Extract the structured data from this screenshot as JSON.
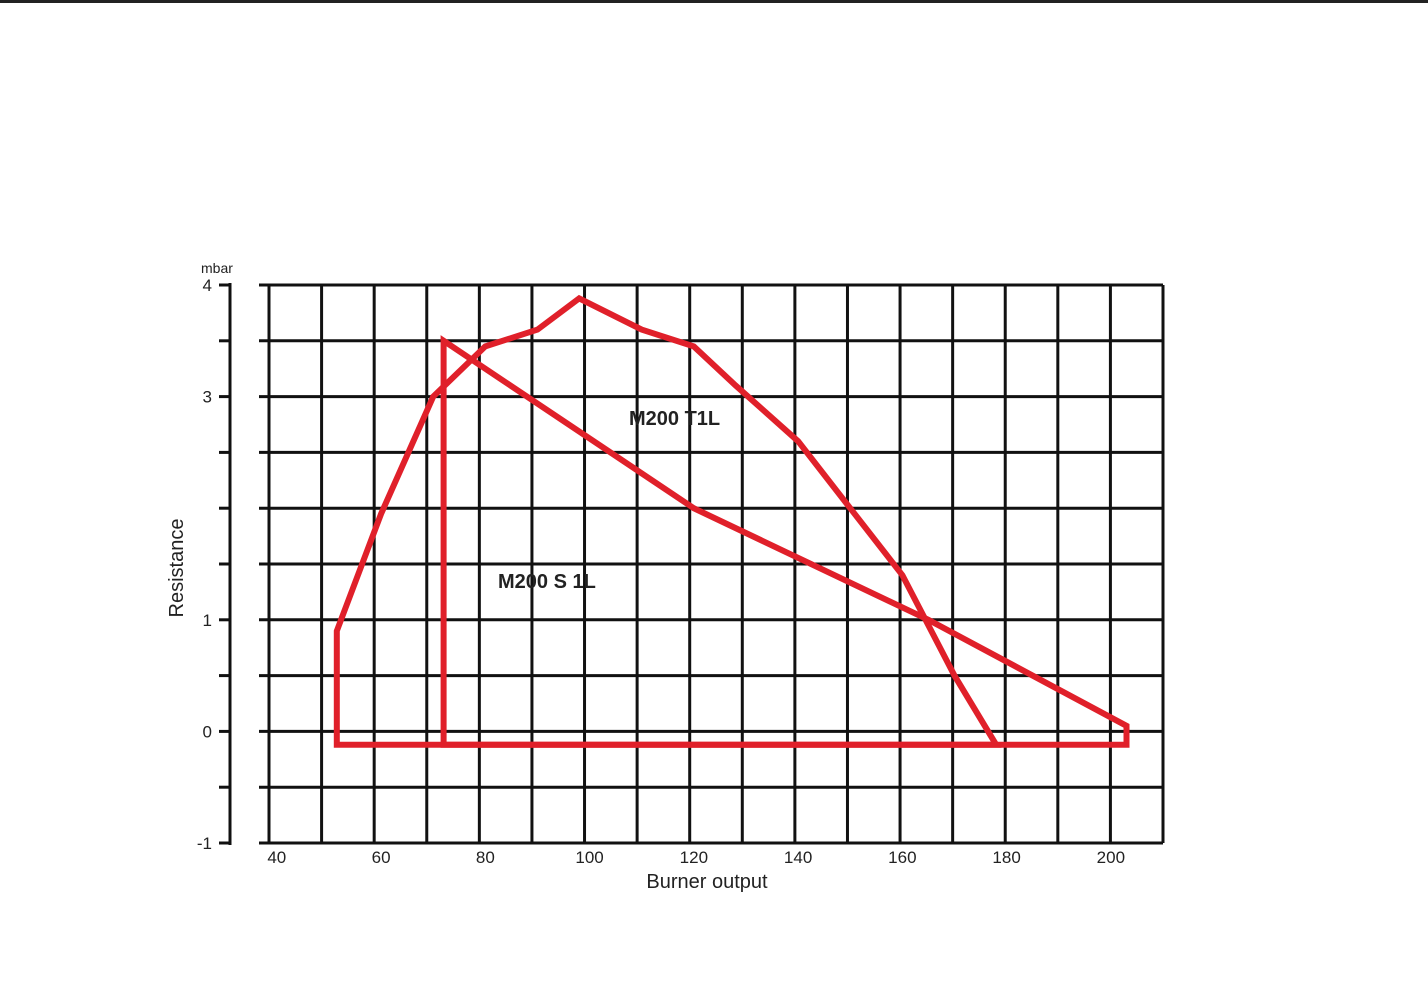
{
  "chart_data": {
    "type": "area",
    "title": "",
    "xlabel": "Burner output",
    "ylabel": "Resistance",
    "y_unit": "mbar",
    "xlim": [
      38.5,
      210
    ],
    "ylim": [
      -1,
      4
    ],
    "grid": true,
    "x_ticks": [
      40,
      60,
      80,
      100,
      120,
      140,
      160,
      180,
      200
    ],
    "y_tick_labels": [
      {
        "value": 4,
        "label": "4"
      },
      {
        "value": 3,
        "label": "3"
      },
      {
        "value": 1,
        "label": "1"
      },
      {
        "value": 0,
        "label": "0"
      },
      {
        "value": -1,
        "label": "-1"
      }
    ],
    "y_minor_ticks": [
      3.5,
      2.5,
      2,
      1.5,
      0.5,
      -0.5
    ],
    "series": [
      {
        "name": "M200 S 1L",
        "color": "#e0202a",
        "points": [
          [
            51.5,
            -0.12
          ],
          [
            51.5,
            0.9
          ],
          [
            60,
            1.95
          ],
          [
            70,
            3.0
          ],
          [
            80,
            3.45
          ],
          [
            90,
            3.6
          ],
          [
            98,
            3.88
          ],
          [
            110,
            3.6
          ],
          [
            120,
            3.45
          ],
          [
            128,
            3.1
          ],
          [
            140,
            2.6
          ],
          [
            150,
            2.0
          ],
          [
            160,
            1.4
          ],
          [
            170,
            0.5
          ],
          [
            178,
            -0.12
          ]
        ]
      },
      {
        "name": "M200 T1L",
        "color": "#e0202a",
        "points": [
          [
            72,
            -0.12
          ],
          [
            72,
            3.5
          ],
          [
            120,
            2.0
          ],
          [
            165,
            1.0
          ],
          [
            203,
            0.05
          ],
          [
            203,
            -0.12
          ]
        ]
      }
    ]
  }
}
